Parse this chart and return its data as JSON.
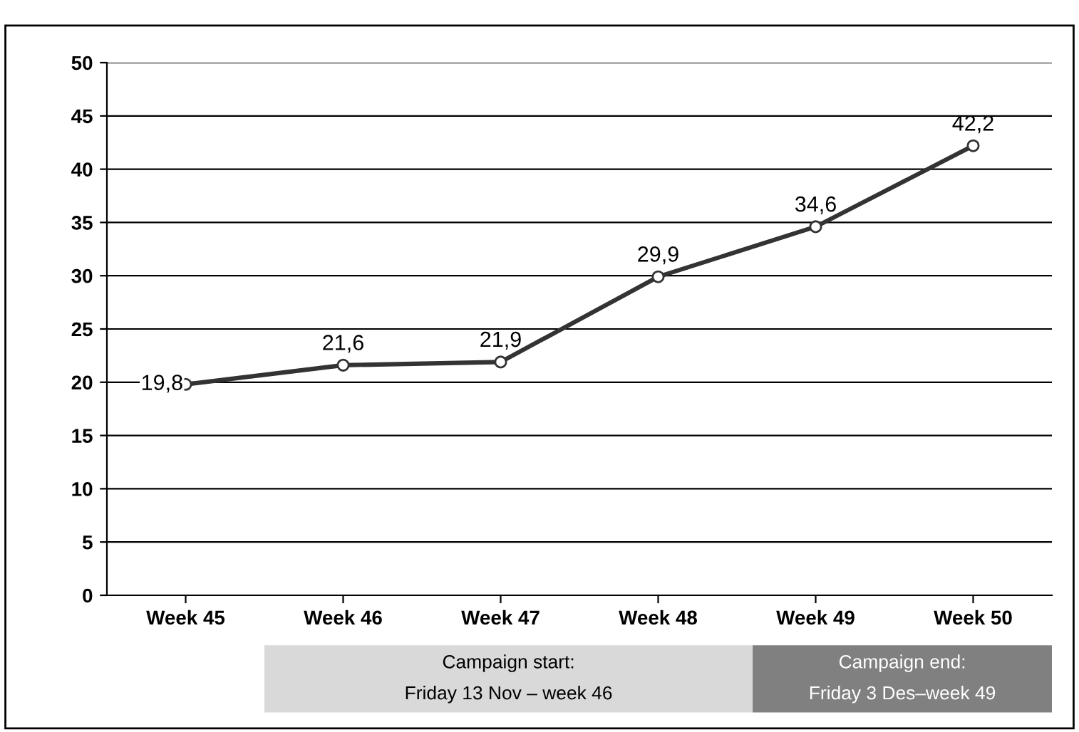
{
  "chart_data": {
    "type": "line",
    "categories": [
      "Week 45",
      "Week 46",
      "Week 47",
      "Week 48",
      "Week 49",
      "Week 50"
    ],
    "series": [
      {
        "color": "#333333",
        "values": [
          19.8,
          21.6,
          21.9,
          29.9,
          34.6,
          42.2
        ],
        "value_labels": [
          "19,8",
          "21,6",
          "21,9",
          "29,9",
          "34,6",
          "42,2"
        ]
      }
    ],
    "ylim": [
      0,
      50
    ],
    "yticks": [
      0,
      5,
      10,
      15,
      20,
      25,
      30,
      35,
      40,
      45,
      50
    ],
    "grid": "y",
    "marker": "circle",
    "line_style": "solid",
    "legend": false,
    "annotations": [
      "Campaign start:\nFriday 13 Nov – week 46",
      "Campaign end:\nFriday 3 Des–week 49"
    ]
  }
}
